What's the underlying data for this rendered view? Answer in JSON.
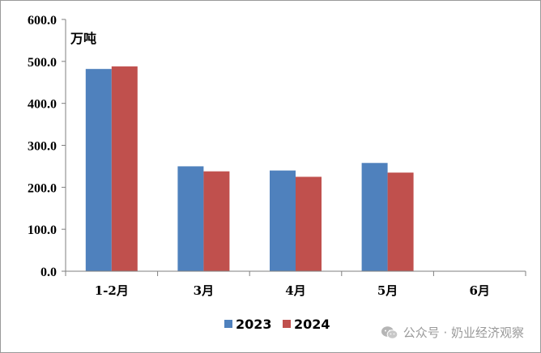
{
  "chart_data": {
    "type": "bar",
    "unit_label": "万吨",
    "categories": [
      "1-2月",
      "3月",
      "4月",
      "5月",
      "6月"
    ],
    "series": [
      {
        "name": "2023",
        "color": "#4f81bd",
        "values": [
          482,
          250,
          240,
          258,
          null
        ]
      },
      {
        "name": "2024",
        "color": "#c0504d",
        "values": [
          488,
          238,
          225,
          235,
          null
        ]
      }
    ],
    "ylim": [
      0,
      600
    ],
    "yticks": [
      "0.0",
      "100.0",
      "200.0",
      "300.0",
      "400.0",
      "500.0",
      "600.0"
    ],
    "grid": false,
    "legend_position": "bottom-center"
  },
  "watermark": {
    "icon": "wechat-icon",
    "text": "公众号 · 奶业经济观察"
  }
}
